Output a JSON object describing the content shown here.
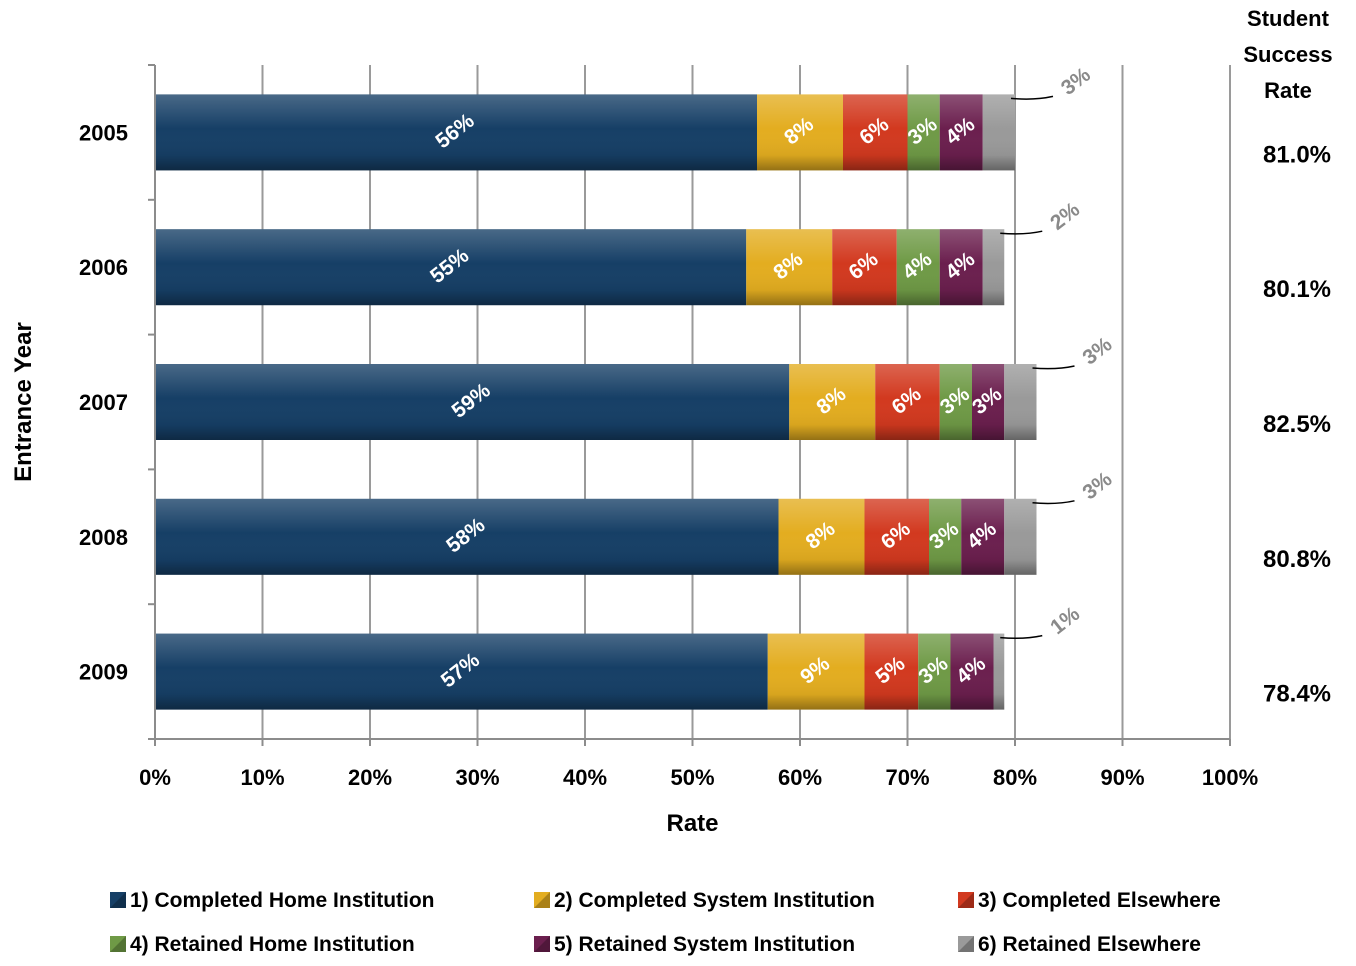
{
  "chart_data": {
    "type": "bar",
    "orientation": "horizontal",
    "stacked": true,
    "categories": [
      "2005",
      "2006",
      "2007",
      "2008",
      "2009"
    ],
    "series": [
      {
        "name": "1) Completed Home Institution",
        "color": "#163f66",
        "values": [
          56,
          55,
          59,
          58,
          57
        ],
        "labels": [
          "56%",
          "55%",
          "59%",
          "58%",
          "57%"
        ]
      },
      {
        "name": "2) Completed System Institution",
        "color": "#e3ad20",
        "values": [
          8,
          8,
          8,
          8,
          9
        ],
        "labels": [
          "8%",
          "8%",
          "8%",
          "8%",
          "9%"
        ]
      },
      {
        "name": "3) Completed Elsewhere",
        "color": "#d2391f",
        "values": [
          6,
          6,
          6,
          6,
          5
        ],
        "labels": [
          "6%",
          "6%",
          "6%",
          "6%",
          "5%"
        ]
      },
      {
        "name": "4) Retained Home Institution",
        "color": "#6f9a46",
        "values": [
          3,
          4,
          3,
          3,
          3
        ],
        "labels": [
          "3%",
          "4%",
          "3%",
          "3%",
          "3%"
        ]
      },
      {
        "name": "5) Retained System Institution",
        "color": "#6b1f4e",
        "values": [
          4,
          4,
          3,
          4,
          4
        ],
        "labels": [
          "4%",
          "4%",
          "3%",
          "4%",
          "4%"
        ]
      },
      {
        "name": "6) Retained Elsewhere",
        "color": "#9a9a9a",
        "values": [
          3,
          2,
          3,
          3,
          1
        ],
        "labels": [
          "3%",
          "2%",
          "3%",
          "3%",
          "1%"
        ]
      }
    ],
    "totals": [
      81.0,
      80.1,
      82.5,
      80.8,
      78.4
    ],
    "total_labels": [
      "81.0%",
      "80.1%",
      "82.5%",
      "80.8%",
      "78.4%"
    ],
    "total_header": [
      "Student",
      "Success",
      "Rate"
    ],
    "xlabel": "Rate",
    "ylabel": "Entrance Year",
    "xlim": [
      0,
      100
    ],
    "xticks": [
      0,
      10,
      20,
      30,
      40,
      50,
      60,
      70,
      80,
      90,
      100
    ],
    "xtick_labels": [
      "0%",
      "10%",
      "20%",
      "30%",
      "40%",
      "50%",
      "60%",
      "70%",
      "80%",
      "90%",
      "100%"
    ],
    "grid": "vertical",
    "legend_position": "bottom"
  }
}
